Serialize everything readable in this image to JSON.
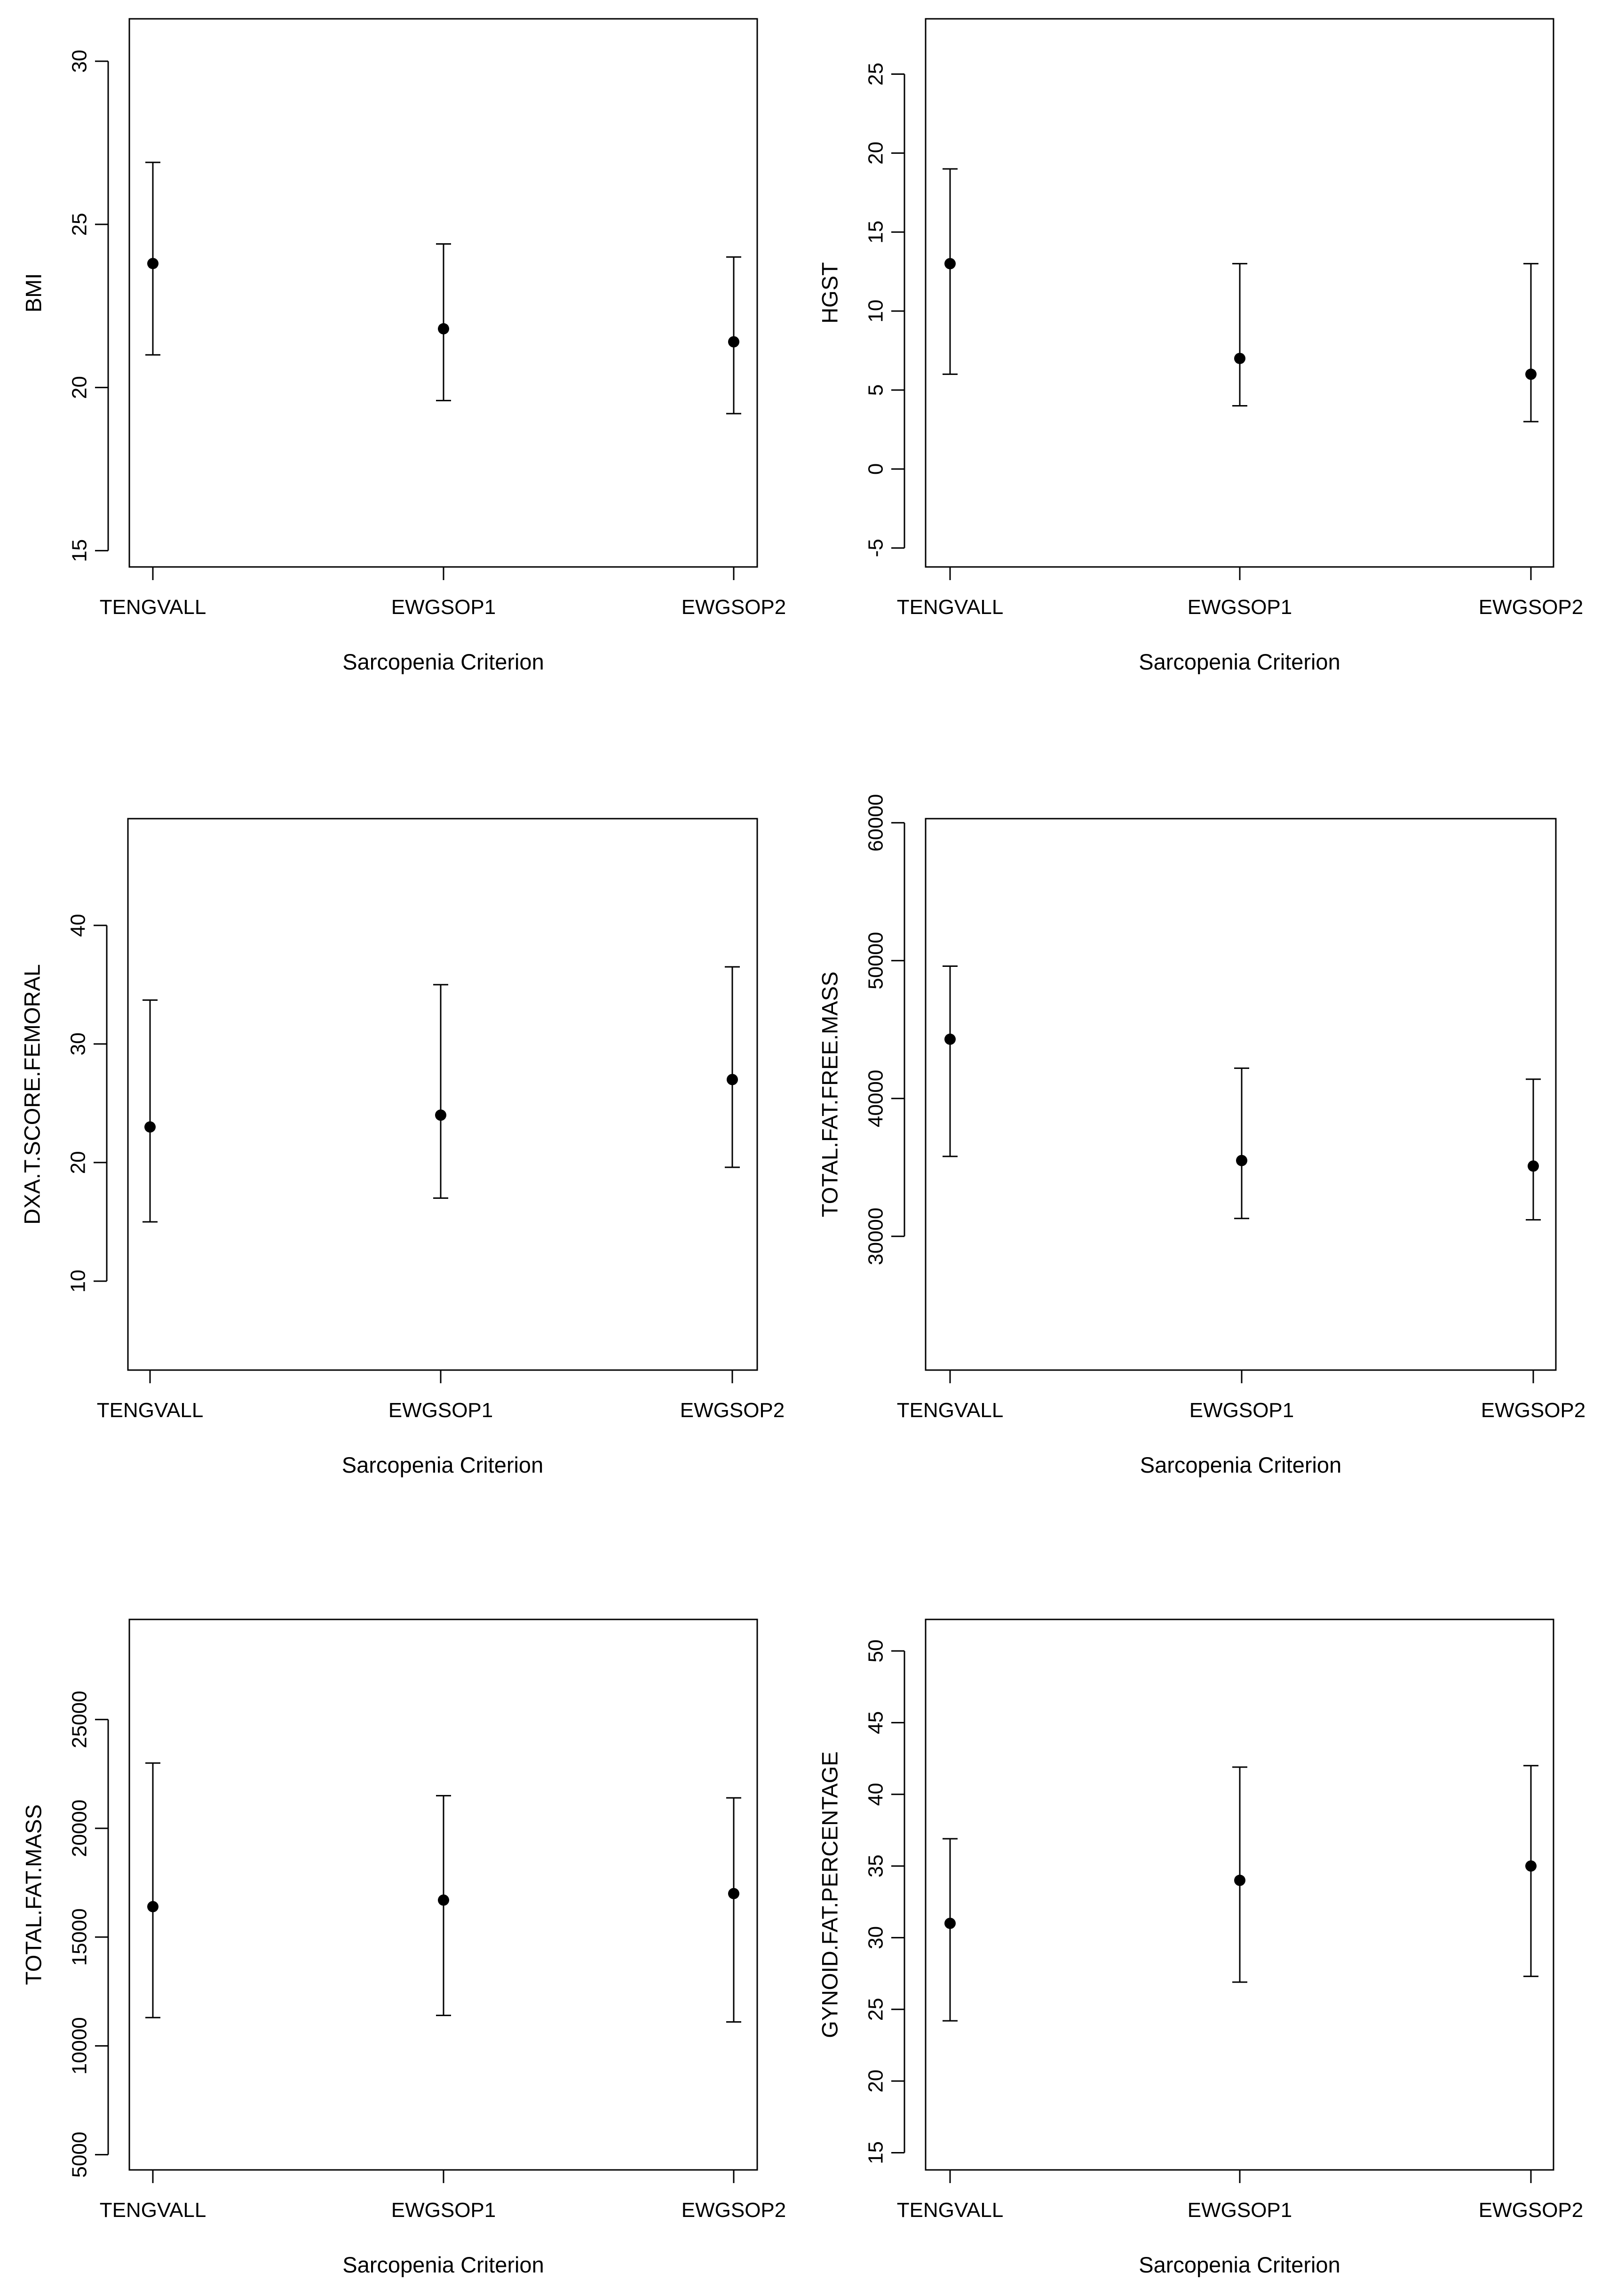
{
  "chart_data": [
    {
      "type": "errorbar",
      "ylabel": "BMI",
      "xlabel": "Sarcopenia Criterion",
      "categories": [
        "TENGVALL",
        "EWGSOP1",
        "EWGSOP2"
      ],
      "ylim": [
        14.5,
        31.3
      ],
      "yticks": [
        15,
        20,
        25,
        30
      ],
      "points": [
        {
          "center": 23.8,
          "lower": 21.0,
          "upper": 26.9
        },
        {
          "center": 21.8,
          "lower": 19.6,
          "upper": 24.4
        },
        {
          "center": 21.4,
          "lower": 19.2,
          "upper": 24.0
        }
      ]
    },
    {
      "type": "errorbar",
      "ylabel": "HGST",
      "xlabel": "Sarcopenia Criterion",
      "categories": [
        "TENGVALL",
        "EWGSOP1",
        "EWGSOP2"
      ],
      "ylim": [
        -6.2,
        28.5
      ],
      "yticks": [
        -5,
        0,
        5,
        10,
        15,
        20,
        25
      ],
      "points": [
        {
          "center": 13.0,
          "lower": 6.0,
          "upper": 19.0
        },
        {
          "center": 7.0,
          "lower": 4.0,
          "upper": 13.0
        },
        {
          "center": 6.0,
          "lower": 3.0,
          "upper": 13.0
        }
      ]
    },
    {
      "type": "errorbar",
      "ylabel": "DXA.T.SCORE.FEMORAL",
      "xlabel": "Sarcopenia Criterion",
      "categories": [
        "TENGVALL",
        "EWGSOP1",
        "EWGSOP2"
      ],
      "ylim": [
        2.5,
        49.0
      ],
      "yticks": [
        10,
        20,
        30,
        40
      ],
      "points": [
        {
          "center": 23.0,
          "lower": 15.0,
          "upper": 33.7
        },
        {
          "center": 24.0,
          "lower": 17.0,
          "upper": 35.0
        },
        {
          "center": 27.0,
          "lower": 19.6,
          "upper": 36.5
        }
      ]
    },
    {
      "type": "errorbar",
      "ylabel": "TOTAL.FAT.FREE.MASS",
      "xlabel": "Sarcopenia Criterion",
      "categories": [
        "TENGVALL",
        "EWGSOP1",
        "EWGSOP2"
      ],
      "ylim": [
        20300,
        60300
      ],
      "yticks": [
        30000,
        40000,
        50000,
        60000
      ],
      "points": [
        {
          "center": 44300,
          "lower": 35800,
          "upper": 49600
        },
        {
          "center": 35500,
          "lower": 31300,
          "upper": 42200
        },
        {
          "center": 35100,
          "lower": 31200,
          "upper": 41400
        }
      ]
    },
    {
      "type": "errorbar",
      "ylabel": "TOTAL.FAT.MASS",
      "xlabel": "Sarcopenia Criterion",
      "categories": [
        "TENGVALL",
        "EWGSOP1",
        "EWGSOP2"
      ],
      "ylim": [
        4300,
        29600
      ],
      "yticks": [
        5000,
        10000,
        15000,
        20000,
        25000
      ],
      "points": [
        {
          "center": 16400,
          "lower": 11300,
          "upper": 23000
        },
        {
          "center": 16700,
          "lower": 11400,
          "upper": 21500
        },
        {
          "center": 17000,
          "lower": 11100,
          "upper": 21400
        }
      ]
    },
    {
      "type": "errorbar",
      "ylabel": "GYNOID.FAT.PERCENTAGE",
      "xlabel": "Sarcopenia Criterion",
      "categories": [
        "TENGVALL",
        "EWGSOP1",
        "EWGSOP2"
      ],
      "ylim": [
        13.8,
        52.2
      ],
      "yticks": [
        15,
        20,
        25,
        30,
        35,
        40,
        45,
        50
      ],
      "points": [
        {
          "center": 31.0,
          "lower": 24.2,
          "upper": 36.9
        },
        {
          "center": 34.0,
          "lower": 26.9,
          "upper": 41.9
        },
        {
          "center": 35.0,
          "lower": 27.3,
          "upper": 42.0
        }
      ]
    }
  ]
}
